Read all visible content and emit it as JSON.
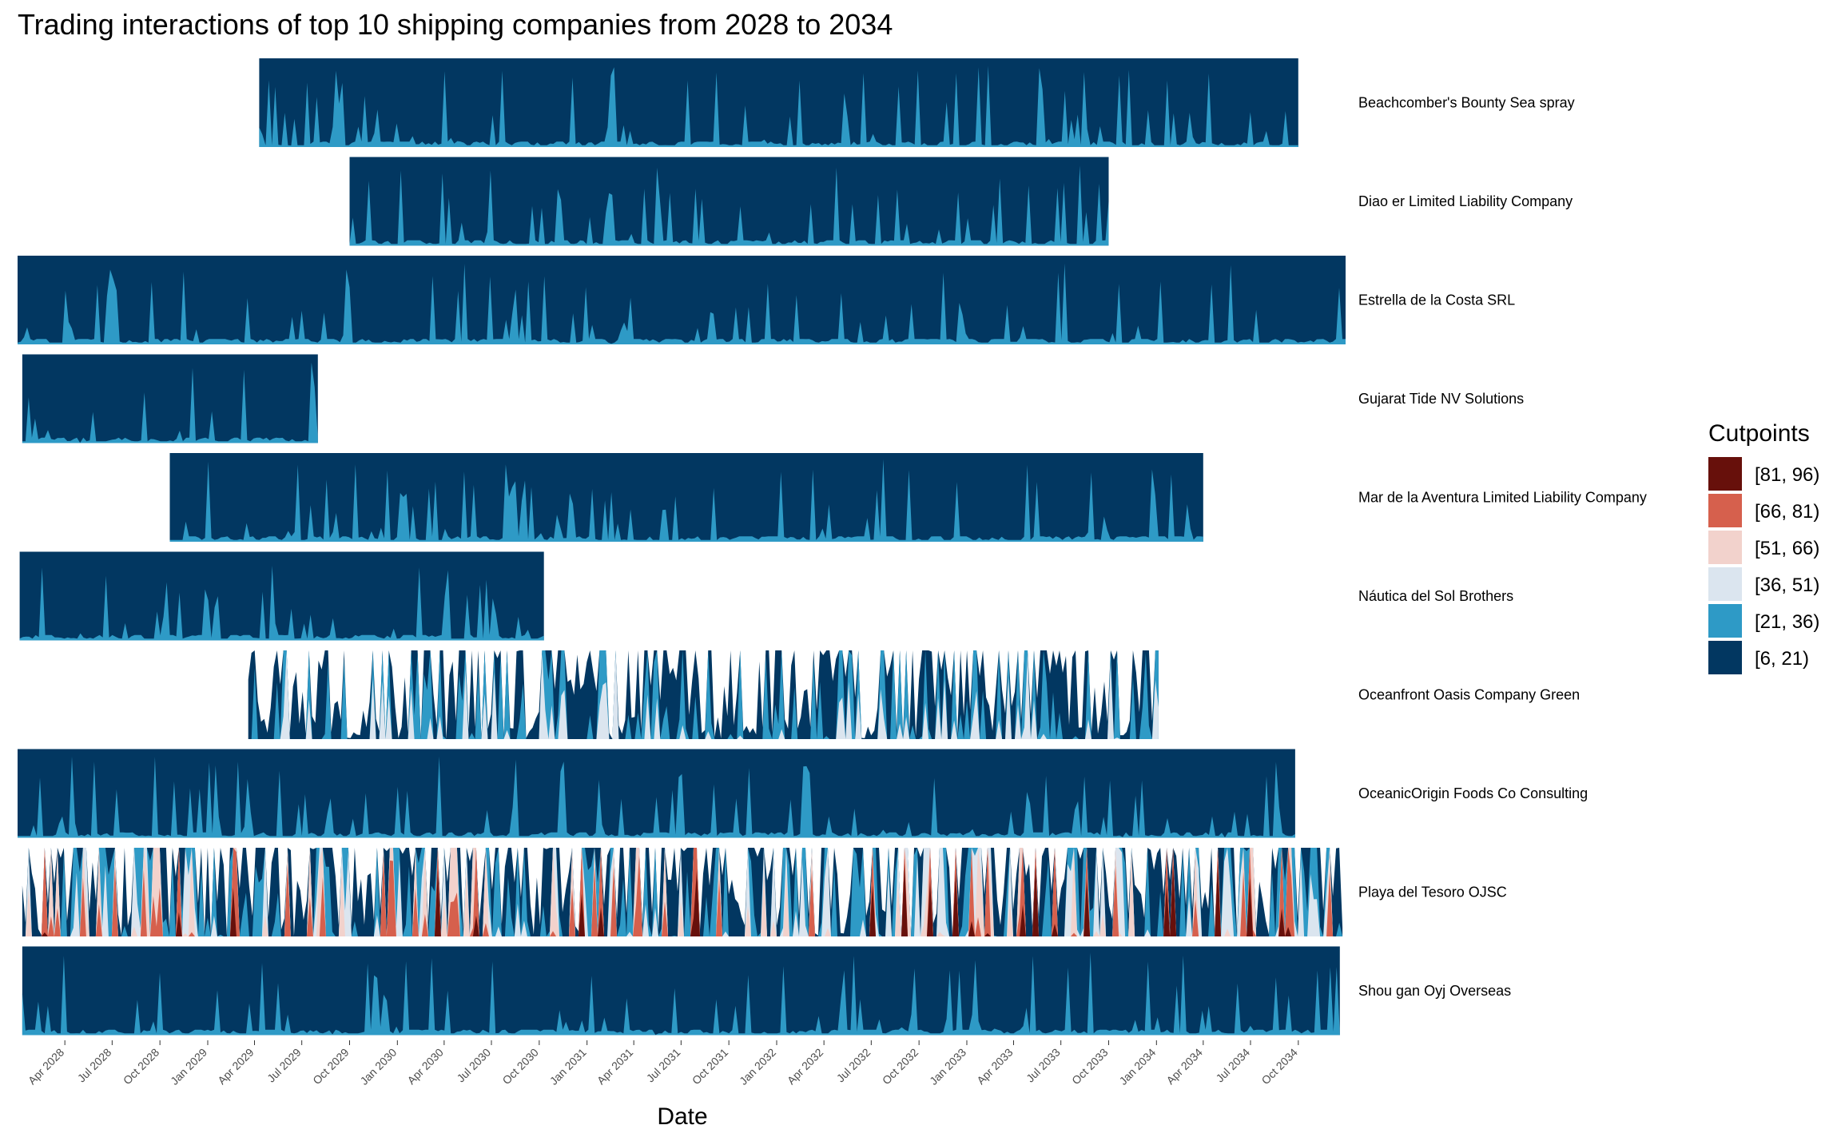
{
  "chart_data": {
    "type": "area",
    "subtype": "horizon",
    "title": "Trading interactions of top 10 shipping companies from 2028 to 2034",
    "xlabel": "Date",
    "ylabel": "",
    "x_range": [
      "2028-01-01",
      "2034-12-31"
    ],
    "x_ticks": [
      "Apr 2028",
      "Jul 2028",
      "Oct 2028",
      "Jan 2029",
      "Apr 2029",
      "Jul 2029",
      "Oct 2029",
      "Jan 2030",
      "Apr 2030",
      "Jul 2030",
      "Oct 2030",
      "Jan 2031",
      "Apr 2031",
      "Jul 2031",
      "Oct 2031",
      "Jan 2032",
      "Apr 2032",
      "Jul 2032",
      "Oct 2032",
      "Jan 2033",
      "Apr 2033",
      "Jul 2033",
      "Oct 2033",
      "Jan 2034",
      "Apr 2034",
      "Jul 2034",
      "Oct 2034"
    ],
    "legend": {
      "title": "Cutpoints",
      "position": "right",
      "bands": [
        {
          "label": "[81, 96)",
          "color": "#67100b"
        },
        {
          "label": "[66, 81)",
          "color": "#d6604d"
        },
        {
          "label": "[51, 66)",
          "color": "#f2d2cc"
        },
        {
          "label": "[36, 51)",
          "color": "#dbe5ef"
        },
        {
          "label": "[21, 36)",
          "color": "#2e9ac6"
        },
        {
          "label": "[6, 21)",
          "color": "#023761"
        }
      ]
    },
    "series": [
      {
        "name": "Beachcomber's Bounty Sea spray",
        "start": "2029-04-10",
        "end": "2034-10-01",
        "level_range": [
          6,
          36
        ]
      },
      {
        "name": "Diao er  Limited Liability Company",
        "start": "2029-10-01",
        "end": "2033-10-01",
        "level_range": [
          6,
          36
        ]
      },
      {
        "name": "Estrella de la Costa SRL",
        "start": "2028-01-01",
        "end": "2034-12-31",
        "level_range": [
          6,
          36
        ]
      },
      {
        "name": "Gujarat   Tide NV Solutions",
        "start": "2028-01-10",
        "end": "2029-08-01",
        "level_range": [
          6,
          36
        ]
      },
      {
        "name": "Mar de la Aventura Limited Liability Company",
        "start": "2028-10-20",
        "end": "2034-04-01",
        "level_range": [
          6,
          36
        ]
      },
      {
        "name": "Náutica del Sol Brothers",
        "start": "2028-01-05",
        "end": "2030-10-10",
        "level_range": [
          6,
          36
        ]
      },
      {
        "name": "Oceanfront Oasis Company Green",
        "start": "2029-03-20",
        "end": "2034-01-05",
        "level_range": [
          6,
          51
        ]
      },
      {
        "name": "OceanicOrigin Foods Co Consulting",
        "start": "2028-01-01",
        "end": "2034-09-25",
        "level_range": [
          6,
          36
        ]
      },
      {
        "name": "Playa del Tesoro OJSC",
        "start": "2028-01-10",
        "end": "2034-12-25",
        "level_range": [
          6,
          96
        ]
      },
      {
        "name": "Shou gan  Oyj Overseas",
        "start": "2028-01-10",
        "end": "2034-12-20",
        "level_range": [
          6,
          36
        ]
      }
    ]
  }
}
